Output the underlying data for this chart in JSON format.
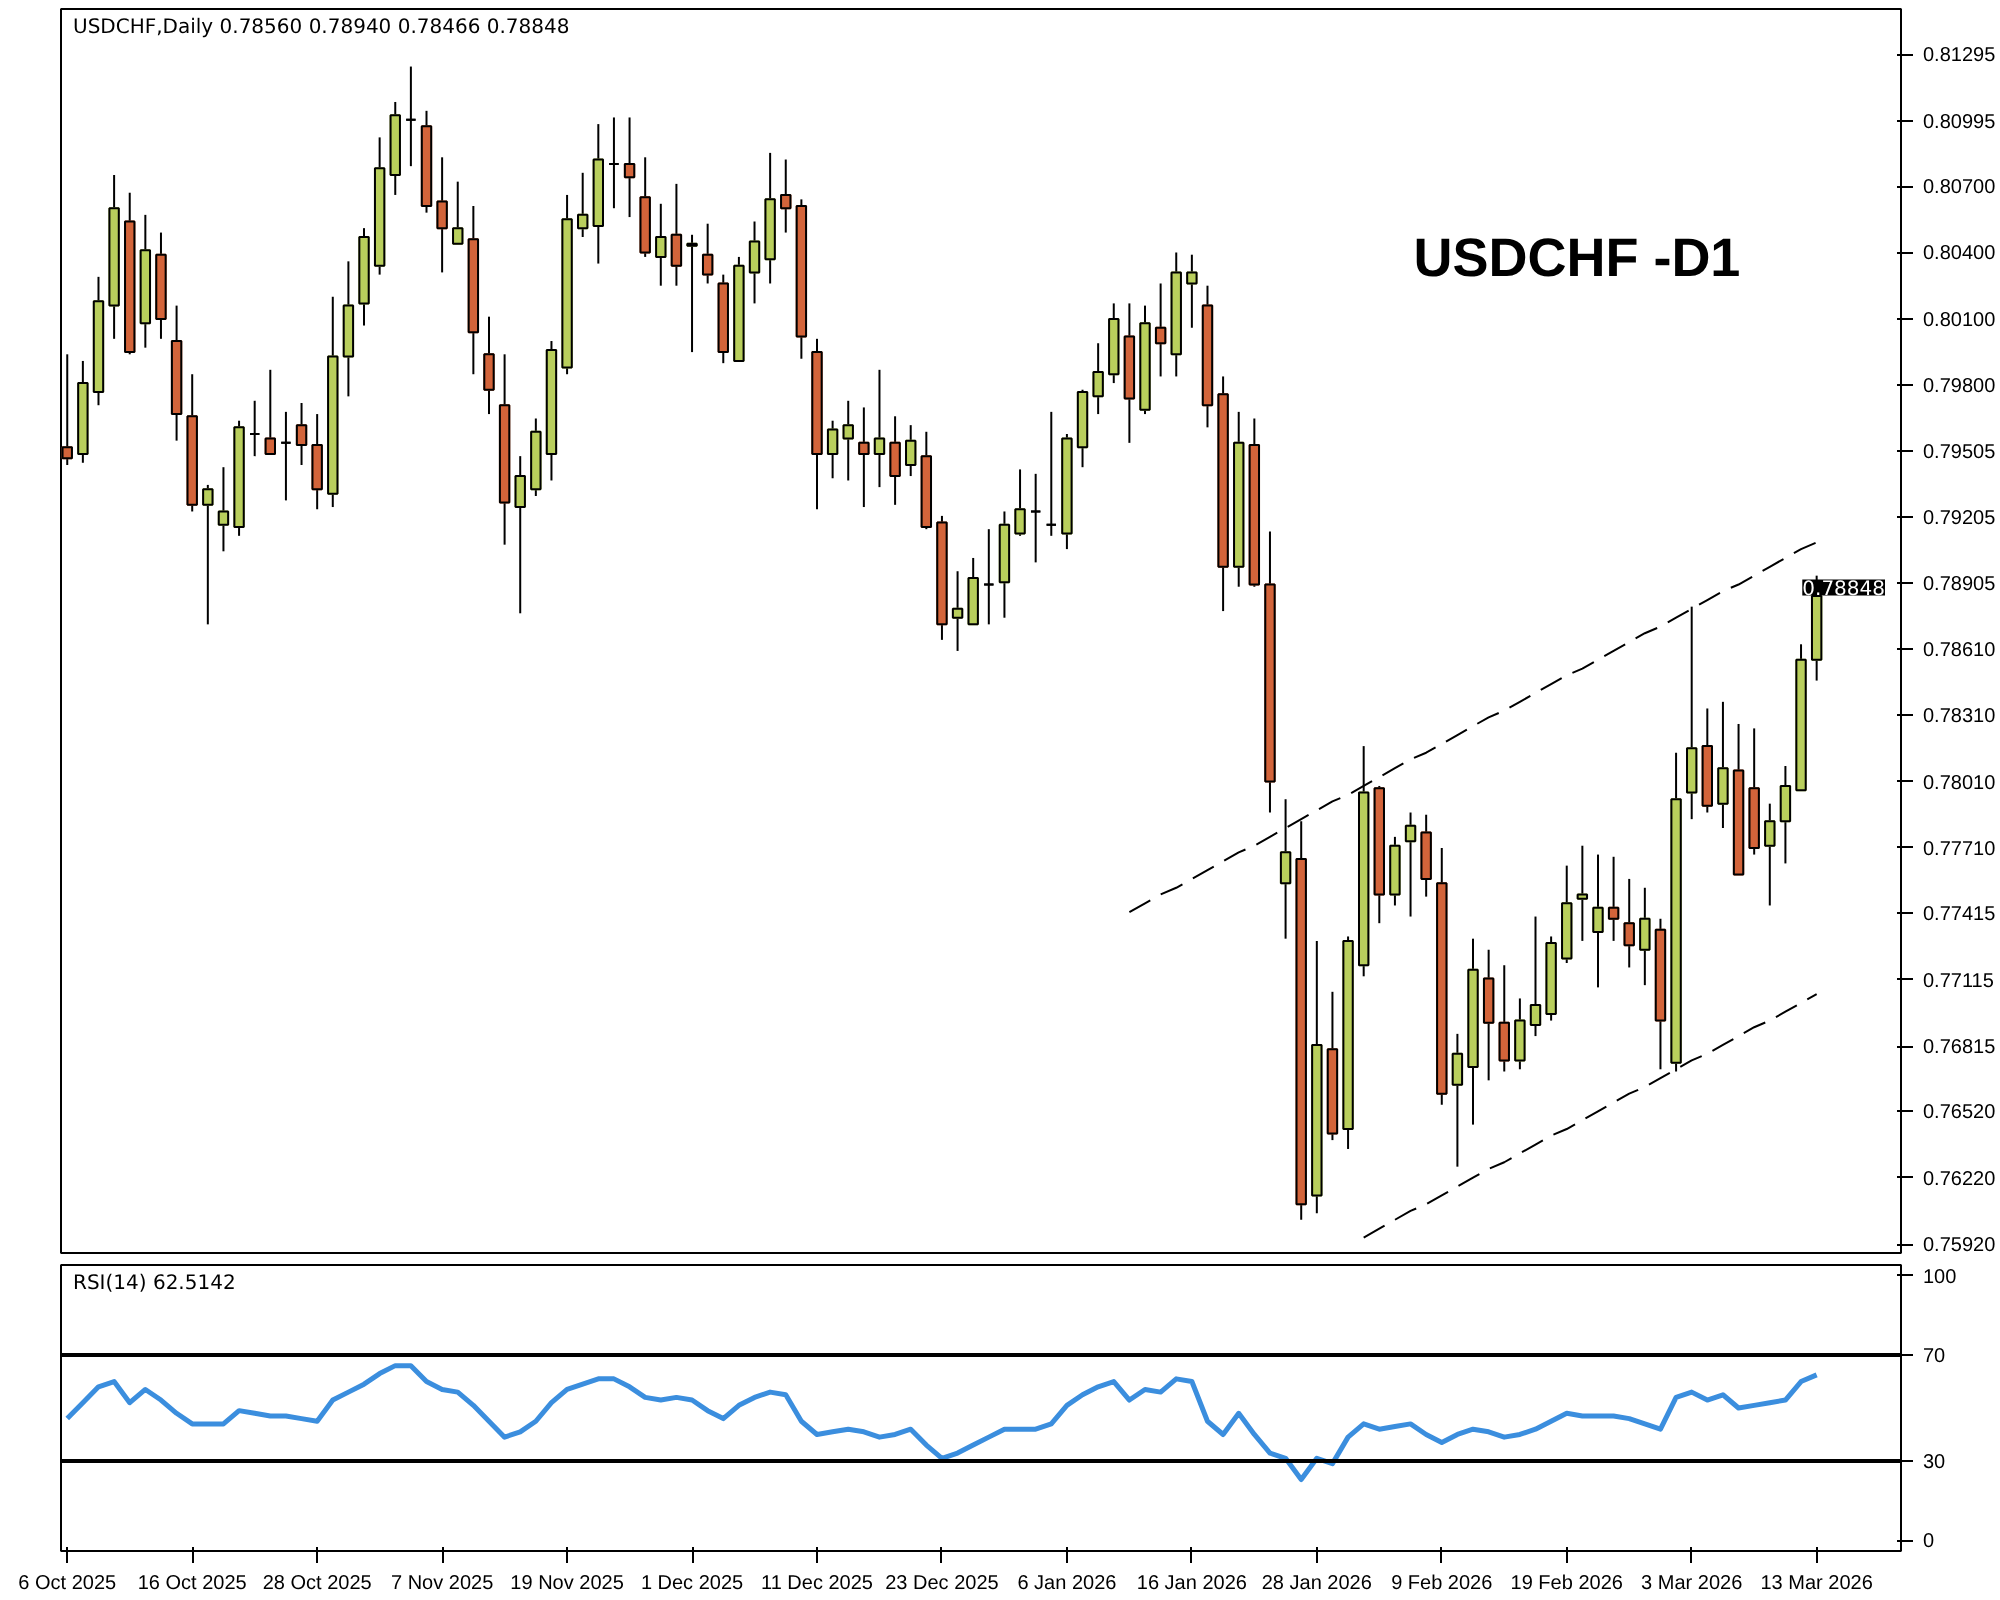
{
  "chart_data": [
    {
      "type": "candlestick",
      "title": "USDCHF,Daily  0.78560 0.78940 0.78466 0.78848",
      "categories": [
        null,
        null,
        null,
        null,
        null,
        null,
        null,
        null,
        null,
        null,
        null,
        null,
        null,
        null,
        null,
        null,
        null,
        null,
        null,
        null,
        null,
        null,
        null,
        null,
        null,
        null,
        null,
        null,
        null,
        null,
        null,
        null,
        null,
        null,
        null,
        null,
        null,
        null,
        null,
        null,
        null,
        null,
        null,
        null,
        null,
        null,
        null,
        null,
        null,
        null,
        null,
        null,
        null,
        null,
        null,
        null,
        null,
        null,
        null,
        null,
        null,
        null,
        null,
        null,
        null,
        null,
        null,
        null,
        null,
        null,
        null,
        null,
        null,
        null,
        null,
        null,
        null,
        null,
        null,
        null,
        null,
        null,
        null,
        null,
        null,
        null,
        null,
        null,
        null,
        null,
        null,
        null,
        null,
        null,
        null,
        null,
        null,
        null,
        null,
        null,
        null,
        null,
        null,
        null,
        null,
        null,
        null,
        null,
        null,
        null,
        null,
        null,
        null
      ],
      "ohlc": [
        [
          0.7952,
          0.7994,
          0.7944,
          0.7947
        ],
        [
          0.7949,
          0.7991,
          0.7945,
          0.7981
        ],
        [
          0.7977,
          0.8029,
          0.7971,
          0.8018
        ],
        [
          0.8016,
          0.8075,
          0.8001,
          0.806
        ],
        [
          0.8054,
          0.8067,
          0.7994,
          0.7995
        ],
        [
          0.8008,
          0.8057,
          0.7997,
          0.8041
        ],
        [
          0.8039,
          0.8049,
          0.8001,
          0.801
        ],
        [
          0.8,
          0.8016,
          0.7955,
          0.7967
        ],
        [
          0.7966,
          0.7985,
          0.7923,
          0.7926
        ],
        [
          0.7926,
          0.7935,
          0.7872,
          0.7933
        ],
        [
          0.7917,
          0.7943,
          0.7905,
          0.7923
        ],
        [
          0.7916,
          0.7964,
          0.7912,
          0.7961
        ],
        [
          0.7958,
          0.7973,
          0.7948,
          0.7958
        ],
        [
          0.7956,
          0.7987,
          0.7949,
          0.7949
        ],
        [
          0.7954,
          0.7968,
          0.7928,
          0.7954
        ],
        [
          0.7962,
          0.7972,
          0.7944,
          0.7953
        ],
        [
          0.7953,
          0.7967,
          0.7924,
          0.7933
        ],
        [
          0.7931,
          0.802,
          0.7925,
          0.7993
        ],
        [
          0.7993,
          0.8036,
          0.7975,
          0.8016
        ],
        [
          0.8017,
          0.8051,
          0.8007,
          0.8047
        ],
        [
          0.8034,
          0.8092,
          0.803,
          0.8078
        ],
        [
          0.8075,
          0.8108,
          0.8066,
          0.8102
        ],
        [
          0.81,
          0.8124,
          0.8079,
          0.81
        ],
        [
          0.8097,
          0.8104,
          0.8058,
          0.8061
        ],
        [
          0.8063,
          0.8083,
          0.8031,
          0.8051
        ],
        [
          0.8044,
          0.8072,
          0.8044,
          0.8051
        ],
        [
          0.8046,
          0.8061,
          0.7985,
          0.8004
        ],
        [
          0.7994,
          0.8011,
          0.7967,
          0.7978
        ],
        [
          0.7971,
          0.7994,
          0.7908,
          0.7927
        ],
        [
          0.7925,
          0.7948,
          0.7877,
          0.7939
        ],
        [
          0.7933,
          0.7965,
          0.793,
          0.7959
        ],
        [
          0.7949,
          0.8,
          0.7937,
          0.7996
        ],
        [
          0.7988,
          0.8066,
          0.7985,
          0.8055
        ],
        [
          0.8051,
          0.8076,
          0.8047,
          0.8057
        ],
        [
          0.8052,
          0.8098,
          0.8035,
          0.8082
        ],
        [
          0.808,
          0.8101,
          0.806,
          0.808
        ],
        [
          0.808,
          0.8101,
          0.8056,
          0.8074
        ],
        [
          0.8065,
          0.8083,
          0.8038,
          0.804
        ],
        [
          0.8038,
          0.8062,
          0.8025,
          0.8047
        ],
        [
          0.8048,
          0.8071,
          0.8025,
          0.8034
        ],
        [
          0.8043,
          0.8048,
          0.7995,
          0.8044
        ],
        [
          0.8039,
          0.8053,
          0.8026,
          0.803
        ],
        [
          0.8026,
          0.803,
          0.799,
          0.7995
        ],
        [
          0.7991,
          0.8038,
          0.7991,
          0.8034
        ],
        [
          0.8031,
          0.8054,
          0.8017,
          0.8045
        ],
        [
          0.8037,
          0.8085,
          0.8026,
          0.8064
        ],
        [
          0.8066,
          0.8082,
          0.8049,
          0.806
        ],
        [
          0.8061,
          0.8064,
          0.7992,
          0.8002
        ],
        [
          0.7995,
          0.8001,
          0.7924,
          0.7949
        ],
        [
          0.7949,
          0.7964,
          0.7938,
          0.796
        ],
        [
          0.7956,
          0.7973,
          0.7937,
          0.7962
        ],
        [
          0.7954,
          0.797,
          0.7925,
          0.7949
        ],
        [
          0.7949,
          0.7987,
          0.7934,
          0.7956
        ],
        [
          0.7954,
          0.7966,
          0.7926,
          0.7939
        ],
        [
          0.7944,
          0.7962,
          0.7939,
          0.7955
        ],
        [
          0.7948,
          0.7959,
          0.7915,
          0.7916
        ],
        [
          0.7918,
          0.7921,
          0.7865,
          0.7872
        ],
        [
          0.7875,
          0.7896,
          0.786,
          0.7879
        ],
        [
          0.7872,
          0.7902,
          0.7872,
          0.7893
        ],
        [
          0.789,
          0.7915,
          0.7872,
          0.789
        ],
        [
          0.7891,
          0.7923,
          0.7875,
          0.7917
        ],
        [
          0.7913,
          0.7942,
          0.7912,
          0.7924
        ],
        [
          0.7923,
          0.794,
          0.79,
          0.7923
        ],
        [
          0.7917,
          0.7968,
          0.7912,
          0.7917
        ],
        [
          0.7913,
          0.7958,
          0.7906,
          0.7956
        ],
        [
          0.7952,
          0.7978,
          0.7943,
          0.7977
        ],
        [
          0.7975,
          0.7999,
          0.7967,
          0.7986
        ],
        [
          0.7985,
          0.8017,
          0.7981,
          0.801
        ],
        [
          0.8002,
          0.8017,
          0.7954,
          0.7974
        ],
        [
          0.7969,
          0.8016,
          0.7967,
          0.8008
        ],
        [
          0.8006,
          0.8026,
          0.7984,
          0.7999
        ],
        [
          0.7994,
          0.804,
          0.7984,
          0.8031
        ],
        [
          0.8026,
          0.8039,
          0.8006,
          0.8031
        ],
        [
          0.8016,
          0.8025,
          0.7961,
          0.7971
        ],
        [
          0.7976,
          0.7984,
          0.7878,
          0.7898
        ],
        [
          0.7898,
          0.7968,
          0.7889,
          0.7954
        ],
        [
          0.7953,
          0.7965,
          0.7889,
          0.789
        ],
        [
          0.789,
          0.7914,
          0.7787,
          0.7801
        ],
        [
          0.7755,
          0.7793,
          0.773,
          0.7769
        ],
        [
          0.7766,
          0.7783,
          0.7603,
          0.761
        ],
        [
          0.7614,
          0.7729,
          0.7606,
          0.7682
        ],
        [
          0.768,
          0.7706,
          0.7639,
          0.7642
        ],
        [
          0.7644,
          0.7731,
          0.7635,
          0.7729
        ],
        [
          0.7718,
          0.7817,
          0.7713,
          0.7796
        ],
        [
          0.7798,
          0.7799,
          0.7737,
          0.775
        ],
        [
          0.775,
          0.7776,
          0.7745,
          0.7772
        ],
        [
          0.7774,
          0.7787,
          0.774,
          0.7781
        ],
        [
          0.7778,
          0.7786,
          0.7749,
          0.7757
        ],
        [
          0.7755,
          0.7771,
          0.7655,
          0.766
        ],
        [
          0.7664,
          0.7687,
          0.7627,
          0.7678
        ],
        [
          0.7672,
          0.773,
          0.7646,
          0.7716
        ],
        [
          0.7712,
          0.7725,
          0.7666,
          0.7692
        ],
        [
          0.7692,
          0.7718,
          0.767,
          0.7675
        ],
        [
          0.7675,
          0.7703,
          0.7671,
          0.7693
        ],
        [
          0.7691,
          0.774,
          0.7686,
          0.77
        ],
        [
          0.7696,
          0.7731,
          0.7693,
          0.7728
        ],
        [
          0.7721,
          0.7763,
          0.7719,
          0.7746
        ],
        [
          0.7748,
          0.7772,
          0.7729,
          0.775
        ],
        [
          0.7733,
          0.7768,
          0.7708,
          0.7744
        ],
        [
          0.7744,
          0.7767,
          0.7729,
          0.7739
        ],
        [
          0.7737,
          0.7757,
          0.7717,
          0.7727
        ],
        [
          0.7725,
          0.7753,
          0.7709,
          0.7739
        ],
        [
          0.7734,
          0.7739,
          0.7671,
          0.7693
        ],
        [
          0.7674,
          0.7814,
          0.767,
          0.7793
        ],
        [
          0.7796,
          0.788,
          0.7784,
          0.7816
        ],
        [
          0.7817,
          0.7834,
          0.7787,
          0.779
        ],
        [
          0.7791,
          0.7837,
          0.778,
          0.7807
        ],
        [
          0.7806,
          0.7827,
          0.7759,
          0.7759
        ],
        [
          0.7798,
          0.7825,
          0.7768,
          0.7771
        ],
        [
          0.7772,
          0.7791,
          0.7745,
          0.7783
        ],
        [
          0.7783,
          0.7808,
          0.7764,
          0.7799
        ],
        [
          0.7797,
          0.7863,
          0.7797,
          0.7856
        ],
        [
          0.7856,
          0.7894,
          0.78466,
          0.78848
        ]
      ],
      "colors": [
        "#d3643a",
        "#b9cf5c",
        "#b9cf5c",
        "#b9cf5c",
        "#d3643a",
        "#b9cf5c",
        "#d3643a",
        "#d3643a",
        "#d3643a",
        "#b9cf5c",
        "#b9cf5c",
        "#b9cf5c",
        "#000000",
        "#d3643a",
        "#000000",
        "#d3643a",
        "#d3643a",
        "#b9cf5c",
        "#b9cf5c",
        "#b9cf5c",
        "#b9cf5c",
        "#b9cf5c",
        "#000000",
        "#d3643a",
        "#d3643a",
        "#b9cf5c",
        "#d3643a",
        "#d3643a",
        "#d3643a",
        "#b9cf5c",
        "#b9cf5c",
        "#b9cf5c",
        "#b9cf5c",
        "#b9cf5c",
        "#b9cf5c",
        "#000000",
        "#d3643a",
        "#d3643a",
        "#b9cf5c",
        "#d3643a",
        "#b9cf5c",
        "#d3643a",
        "#d3643a",
        "#b9cf5c",
        "#b9cf5c",
        "#b9cf5c",
        "#d3643a",
        "#d3643a",
        "#d3643a",
        "#b9cf5c",
        "#b9cf5c",
        "#d3643a",
        "#b9cf5c",
        "#d3643a",
        "#b9cf5c",
        "#d3643a",
        "#d3643a",
        "#b9cf5c",
        "#b9cf5c",
        "#000000",
        "#b9cf5c",
        "#b9cf5c",
        "#000000",
        "#000000",
        "#b9cf5c",
        "#b9cf5c",
        "#b9cf5c",
        "#b9cf5c",
        "#d3643a",
        "#b9cf5c",
        "#d3643a",
        "#b9cf5c",
        "#b9cf5c",
        "#d3643a",
        "#d3643a",
        "#b9cf5c",
        "#d3643a",
        "#d3643a",
        "#b9cf5c",
        "#d3643a",
        "#b9cf5c",
        "#d3643a",
        "#b9cf5c",
        "#b9cf5c",
        "#d3643a",
        "#b9cf5c",
        "#b9cf5c",
        "#d3643a",
        "#d3643a",
        "#b9cf5c",
        "#b9cf5c",
        "#d3643a",
        "#d3643a",
        "#b9cf5c",
        "#b9cf5c",
        "#b9cf5c",
        "#b9cf5c",
        "#b9cf5c",
        "#b9cf5c",
        "#d3643a",
        "#d3643a",
        "#b9cf5c",
        "#d3643a",
        "#b9cf5c",
        "#b9cf5c",
        "#d3643a",
        "#b9cf5c",
        "#d3643a",
        "#d3643a",
        "#b9cf5c",
        "#b9cf5c",
        "#b9cf5c",
        "#b9cf5c"
      ],
      "series": [
        {
          "type": "line",
          "line_style": "dashed",
          "color": "#000000",
          "values": [
            null,
            null,
            null,
            null,
            null,
            null,
            null,
            null,
            null,
            null,
            null,
            null,
            null,
            null,
            null,
            null,
            null,
            null,
            null,
            null,
            null,
            null,
            null,
            null,
            null,
            null,
            null,
            null,
            null,
            null,
            null,
            null,
            null,
            null,
            null,
            null,
            null,
            null,
            null,
            null,
            null,
            null,
            null,
            null,
            null,
            null,
            null,
            null,
            null,
            null,
            null,
            null,
            null,
            null,
            null,
            null,
            null,
            null,
            null,
            null,
            null,
            null,
            null,
            null,
            null,
            null,
            null,
            null,
            0.7742,
            0.7746,
            0.775,
            0.7753,
            0.7757,
            0.7761,
            0.7765,
            0.7769,
            0.7772,
            0.7776,
            0.778,
            0.7784,
            0.7788,
            0.7792,
            0.7795,
            0.7799,
            0.7803,
            0.7807,
            0.7811,
            0.7814,
            0.7818,
            0.7822,
            0.7826,
            0.783,
            0.7833,
            0.7837,
            0.7841,
            0.7845,
            0.7849,
            0.7852,
            0.7856,
            0.786,
            0.7864,
            0.7868,
            0.7871,
            0.7875,
            0.7879,
            0.7883,
            0.7887,
            0.789,
            0.7894,
            0.7898,
            0.7902,
            0.7906,
            0.7909
          ]
        },
        {
          "type": "line",
          "line_style": "dashed",
          "color": "#000000",
          "values": [
            null,
            null,
            null,
            null,
            null,
            null,
            null,
            null,
            null,
            null,
            null,
            null,
            null,
            null,
            null,
            null,
            null,
            null,
            null,
            null,
            null,
            null,
            null,
            null,
            null,
            null,
            null,
            null,
            null,
            null,
            null,
            null,
            null,
            null,
            null,
            null,
            null,
            null,
            null,
            null,
            null,
            null,
            null,
            null,
            null,
            null,
            null,
            null,
            null,
            null,
            null,
            null,
            null,
            null,
            null,
            null,
            null,
            null,
            null,
            null,
            null,
            null,
            null,
            null,
            null,
            null,
            null,
            null,
            null,
            null,
            null,
            null,
            null,
            null,
            null,
            null,
            null,
            null,
            null,
            null,
            null,
            null,
            null,
            0.7595,
            0.7599,
            0.7603,
            0.7607,
            0.761,
            0.7614,
            0.7618,
            0.7622,
            0.7626,
            0.7629,
            0.7633,
            0.7637,
            0.7641,
            0.7644,
            0.7648,
            0.7652,
            0.7656,
            0.766,
            0.7663,
            0.7667,
            0.7671,
            0.7675,
            0.7678,
            0.7682,
            0.7686,
            0.769,
            0.7693,
            0.7697,
            0.7701,
            0.7705
          ]
        }
      ],
      "ylim": [
        0.7588,
        0.815
      ],
      "yticks": [
        {
          "value": 0.81295,
          "label": "0.81295"
        },
        {
          "value": 0.80995,
          "label": "0.80995"
        },
        {
          "value": 0.807,
          "label": "0.80700"
        },
        {
          "value": 0.804,
          "label": "0.80400"
        },
        {
          "value": 0.801,
          "label": "0.80100"
        },
        {
          "value": 0.798,
          "label": "0.79800"
        },
        {
          "value": 0.79505,
          "label": "0.79505"
        },
        {
          "value": 0.79205,
          "label": "0.79205"
        },
        {
          "value": 0.78905,
          "label": "0.78905"
        },
        {
          "value": 0.7861,
          "label": "0.78610"
        },
        {
          "value": 0.7831,
          "label": "0.78310"
        },
        {
          "value": 0.7801,
          "label": "0.78010"
        },
        {
          "value": 0.7771,
          "label": "0.77710"
        },
        {
          "value": 0.77415,
          "label": "0.77415"
        },
        {
          "value": 0.77115,
          "label": "0.77115"
        },
        {
          "value": 0.76815,
          "label": "0.76815"
        },
        {
          "value": 0.7652,
          "label": "0.76520"
        },
        {
          "value": 0.7622,
          "label": "0.76220"
        },
        {
          "value": 0.7592,
          "label": "0.75920"
        }
      ],
      "annotations": [
        "USDCHF -D1",
        "0.78848"
      ],
      "tick_labels": "y"
    },
    {
      "type": "line",
      "title": "RSI(14) 62.5142",
      "categories": [
        "6 Oct 2025",
        null,
        null,
        null,
        null,
        null,
        null,
        null,
        "16 Oct 2025",
        null,
        null,
        null,
        null,
        null,
        null,
        null,
        "28 Oct 2025",
        null,
        null,
        null,
        null,
        null,
        null,
        null,
        "7 Nov 2025",
        null,
        null,
        null,
        null,
        null,
        null,
        null,
        "19 Nov 2025",
        null,
        null,
        null,
        null,
        null,
        null,
        null,
        "1 Dec 2025",
        null,
        null,
        null,
        null,
        null,
        null,
        null,
        "11 Dec 2025",
        null,
        null,
        null,
        null,
        null,
        null,
        null,
        "23 Dec 2025",
        null,
        null,
        null,
        null,
        null,
        null,
        null,
        "6 Jan 2026",
        null,
        null,
        null,
        null,
        null,
        null,
        null,
        "16 Jan 2026",
        null,
        null,
        null,
        null,
        null,
        null,
        null,
        "28 Jan 2026",
        null,
        null,
        null,
        null,
        null,
        null,
        null,
        "9 Feb 2026",
        null,
        null,
        null,
        null,
        null,
        null,
        null,
        "19 Feb 2026",
        null,
        null,
        null,
        null,
        null,
        null,
        null,
        "3 Mar 2026",
        null,
        null,
        null,
        null,
        null,
        null,
        null,
        "13 Mar 2026"
      ],
      "series": [
        {
          "color": "#3b8ede",
          "values": [
            46,
            52,
            58,
            60,
            52,
            57,
            53,
            48,
            44,
            44,
            44,
            49,
            48,
            47,
            47,
            46,
            45,
            53,
            56,
            59,
            63,
            66,
            66,
            60,
            57,
            56,
            51,
            45,
            39,
            41,
            45,
            52,
            57,
            59,
            61,
            61,
            58,
            54,
            53,
            54,
            53,
            49,
            46,
            51,
            54,
            56,
            55,
            45,
            40,
            41,
            42,
            41,
            39,
            40,
            42,
            36,
            31,
            33,
            36,
            39,
            42,
            42,
            42,
            44,
            51,
            55,
            58,
            60,
            53,
            57,
            56,
            61,
            60,
            45,
            40,
            48,
            40,
            33,
            31,
            23,
            31,
            29,
            39,
            44,
            42,
            43,
            44,
            40,
            37,
            40,
            42,
            41,
            39,
            40,
            42,
            45,
            48,
            47,
            47,
            47,
            46,
            44,
            42,
            54,
            56,
            53,
            55,
            50,
            51,
            52,
            53,
            60,
            62.5
          ]
        }
      ],
      "ylim": [
        -4,
        104
      ],
      "yticks": [
        0,
        30,
        70,
        100
      ],
      "ref_lines": [
        {
          "axis": "y",
          "value": 70,
          "color": "#000000"
        },
        {
          "axis": "y",
          "value": 30,
          "color": "#000000"
        }
      ]
    }
  ]
}
